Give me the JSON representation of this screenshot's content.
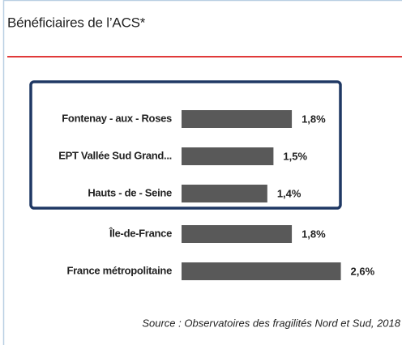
{
  "chart_data": {
    "type": "bar",
    "orientation": "horizontal",
    "title": "Bénéficiaires de l’ACS*",
    "categories": [
      "Fontenay - aux - Roses",
      "EPT Vallée Sud Grand...",
      "Hauts - de - Seine",
      "Île-de-France",
      "France métropolitaine"
    ],
    "values": [
      1.8,
      1.5,
      1.4,
      1.8,
      2.6
    ],
    "value_labels": [
      "1,8%",
      "1,5%",
      "1,4%",
      "1,8%",
      "2,6%"
    ],
    "color": "#595959",
    "source": "Source : Observatoires des fragilités Nord et Sud, 2018"
  }
}
